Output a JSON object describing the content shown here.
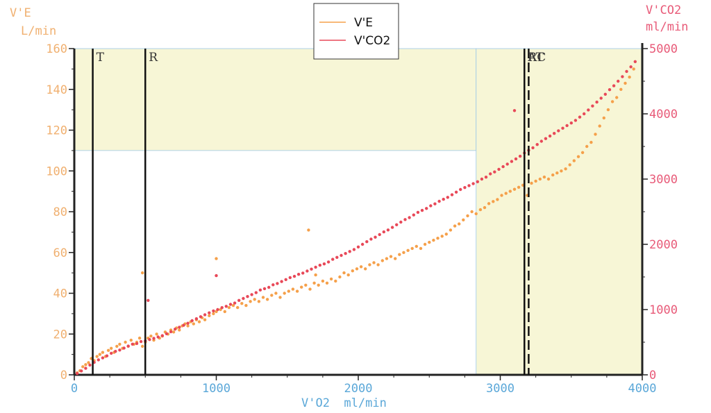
{
  "chart_data": {
    "type": "scatter",
    "xlabel": "V'O2  ml/min",
    "x_range": [
      0,
      4000
    ],
    "x_ticks": [
      0,
      1000,
      2000,
      3000,
      4000
    ],
    "left_axis": {
      "title": "V'E",
      "unit": "L/min",
      "range": [
        0,
        160
      ],
      "ticks": [
        0,
        20,
        40,
        60,
        80,
        100,
        120,
        140,
        160
      ]
    },
    "right_axis": {
      "title": "V'CO2",
      "unit": "ml/min",
      "range": [
        0,
        5000
      ],
      "ticks": [
        0,
        1000,
        2000,
        3000,
        4000,
        5000
      ]
    },
    "legend": [
      "V'E",
      "V'CO2"
    ],
    "legend_position": "top-center",
    "markers": [
      {
        "label": "T",
        "x": 130,
        "style": "solid"
      },
      {
        "label": "R",
        "x": 500,
        "style": "solid"
      },
      {
        "label": "AT",
        "x": 3170,
        "style": "solid"
      },
      {
        "label": "RC",
        "x": 3200,
        "style": "dashed"
      }
    ],
    "colors": {
      "ve": "#f5a04a",
      "vco2": "#e84858",
      "left_axis_text": "#f0b070",
      "right_axis_text": "#e85a78",
      "x_axis_text": "#5aa7d8",
      "zone_fill": "#f7f6d6",
      "zone_border": "#9cc7e8"
    },
    "zones": [
      {
        "x": [
          0,
          2830
        ],
        "y": [
          110,
          160
        ],
        "axis": "left"
      },
      {
        "x": [
          2830,
          4000
        ],
        "y": [
          0,
          160
        ],
        "axis": "left"
      }
    ],
    "series": [
      {
        "name": "V'E",
        "axis": "left",
        "points": [
          [
            20,
            1
          ],
          [
            40,
            2
          ],
          [
            60,
            4
          ],
          [
            80,
            5
          ],
          [
            100,
            6
          ],
          [
            120,
            8
          ],
          [
            140,
            7
          ],
          [
            160,
            9
          ],
          [
            180,
            10
          ],
          [
            200,
            11
          ],
          [
            220,
            9
          ],
          [
            240,
            12
          ],
          [
            260,
            13
          ],
          [
            280,
            11
          ],
          [
            300,
            14
          ],
          [
            320,
            15
          ],
          [
            340,
            13
          ],
          [
            360,
            16
          ],
          [
            380,
            14
          ],
          [
            400,
            17
          ],
          [
            420,
            15
          ],
          [
            440,
            16
          ],
          [
            460,
            18
          ],
          [
            480,
            14
          ],
          [
            500,
            16
          ],
          [
            520,
            18
          ],
          [
            540,
            19
          ],
          [
            560,
            17
          ],
          [
            580,
            20
          ],
          [
            600,
            18
          ],
          [
            620,
            19
          ],
          [
            640,
            21
          ],
          [
            660,
            20
          ],
          [
            680,
            22
          ],
          [
            700,
            21
          ],
          [
            720,
            23
          ],
          [
            740,
            22
          ],
          [
            760,
            24
          ],
          [
            780,
            25
          ],
          [
            800,
            24
          ],
          [
            820,
            26
          ],
          [
            840,
            25
          ],
          [
            860,
            27
          ],
          [
            880,
            26
          ],
          [
            900,
            28
          ],
          [
            920,
            27
          ],
          [
            950,
            29
          ],
          [
            980,
            30
          ],
          [
            1000,
            31
          ],
          [
            1030,
            32
          ],
          [
            1060,
            31
          ],
          [
            1090,
            33
          ],
          [
            1120,
            34
          ],
          [
            1150,
            33
          ],
          [
            1180,
            35
          ],
          [
            1210,
            34
          ],
          [
            1240,
            36
          ],
          [
            1270,
            37
          ],
          [
            1300,
            36
          ],
          [
            1330,
            38
          ],
          [
            1360,
            37
          ],
          [
            1390,
            39
          ],
          [
            1420,
            40
          ],
          [
            1450,
            38
          ],
          [
            1480,
            40
          ],
          [
            1510,
            41
          ],
          [
            1540,
            42
          ],
          [
            1570,
            41
          ],
          [
            1600,
            43
          ],
          [
            1630,
            44
          ],
          [
            1660,
            42
          ],
          [
            1690,
            45
          ],
          [
            1720,
            44
          ],
          [
            1750,
            46
          ],
          [
            1780,
            45
          ],
          [
            1810,
            47
          ],
          [
            1840,
            46
          ],
          [
            1870,
            48
          ],
          [
            1900,
            50
          ],
          [
            1930,
            49
          ],
          [
            1960,
            51
          ],
          [
            1990,
            52
          ],
          [
            2020,
            53
          ],
          [
            2050,
            52
          ],
          [
            2080,
            54
          ],
          [
            2110,
            55
          ],
          [
            2140,
            54
          ],
          [
            2170,
            56
          ],
          [
            2200,
            57
          ],
          [
            2230,
            58
          ],
          [
            2260,
            57
          ],
          [
            2290,
            59
          ],
          [
            2320,
            60
          ],
          [
            2350,
            61
          ],
          [
            2380,
            62
          ],
          [
            2410,
            63
          ],
          [
            2440,
            62
          ],
          [
            2470,
            64
          ],
          [
            2500,
            65
          ],
          [
            2530,
            66
          ],
          [
            2560,
            67
          ],
          [
            2590,
            68
          ],
          [
            2620,
            69
          ],
          [
            2650,
            71
          ],
          [
            2680,
            73
          ],
          [
            2710,
            74
          ],
          [
            2740,
            76
          ],
          [
            2770,
            78
          ],
          [
            2800,
            80
          ],
          [
            2830,
            79
          ],
          [
            2860,
            81
          ],
          [
            2890,
            82
          ],
          [
            2920,
            84
          ],
          [
            2950,
            85
          ],
          [
            2980,
            86
          ],
          [
            3010,
            88
          ],
          [
            3040,
            89
          ],
          [
            3070,
            90
          ],
          [
            3100,
            91
          ],
          [
            3130,
            92
          ],
          [
            3160,
            93
          ],
          [
            3190,
            88
          ],
          [
            3220,
            94
          ],
          [
            3250,
            95
          ],
          [
            3280,
            96
          ],
          [
            3310,
            97
          ],
          [
            3340,
            96
          ],
          [
            3370,
            98
          ],
          [
            3400,
            99
          ],
          [
            3430,
            100
          ],
          [
            3460,
            101
          ],
          [
            3490,
            103
          ],
          [
            3520,
            105
          ],
          [
            3550,
            107
          ],
          [
            3580,
            109
          ],
          [
            3610,
            112
          ],
          [
            3640,
            114
          ],
          [
            3670,
            118
          ],
          [
            3700,
            122
          ],
          [
            3730,
            126
          ],
          [
            3760,
            130
          ],
          [
            3790,
            134
          ],
          [
            3820,
            136
          ],
          [
            3850,
            140
          ],
          [
            3880,
            143
          ],
          [
            3910,
            146
          ],
          [
            3940,
            150
          ],
          [
            480,
            50
          ],
          [
            1000,
            57
          ],
          [
            1650,
            71
          ],
          [
            1700,
            49
          ]
        ]
      },
      {
        "name": "V'CO2",
        "axis": "right",
        "points": [
          [
            20,
            20
          ],
          [
            50,
            60
          ],
          [
            80,
            100
          ],
          [
            110,
            150
          ],
          [
            140,
            190
          ],
          [
            170,
            230
          ],
          [
            200,
            260
          ],
          [
            230,
            290
          ],
          [
            260,
            330
          ],
          [
            290,
            360
          ],
          [
            320,
            380
          ],
          [
            350,
            410
          ],
          [
            380,
            440
          ],
          [
            410,
            470
          ],
          [
            440,
            480
          ],
          [
            470,
            510
          ],
          [
            500,
            520
          ],
          [
            530,
            540
          ],
          [
            560,
            560
          ],
          [
            590,
            580
          ],
          [
            620,
            600
          ],
          [
            650,
            630
          ],
          [
            680,
            660
          ],
          [
            710,
            700
          ],
          [
            740,
            730
          ],
          [
            770,
            760
          ],
          [
            800,
            790
          ],
          [
            830,
            830
          ],
          [
            860,
            860
          ],
          [
            890,
            890
          ],
          [
            920,
            920
          ],
          [
            950,
            950
          ],
          [
            980,
            980
          ],
          [
            1010,
            1000
          ],
          [
            1040,
            1030
          ],
          [
            1070,
            1050
          ],
          [
            1100,
            1080
          ],
          [
            1130,
            1100
          ],
          [
            1160,
            1140
          ],
          [
            1190,
            1170
          ],
          [
            1220,
            1200
          ],
          [
            1250,
            1230
          ],
          [
            1280,
            1260
          ],
          [
            1310,
            1300
          ],
          [
            1340,
            1320
          ],
          [
            1370,
            1340
          ],
          [
            1400,
            1380
          ],
          [
            1430,
            1400
          ],
          [
            1460,
            1430
          ],
          [
            1490,
            1460
          ],
          [
            1520,
            1490
          ],
          [
            1550,
            1510
          ],
          [
            1580,
            1540
          ],
          [
            1610,
            1560
          ],
          [
            1640,
            1590
          ],
          [
            1670,
            1620
          ],
          [
            1700,
            1650
          ],
          [
            1730,
            1680
          ],
          [
            1760,
            1700
          ],
          [
            1790,
            1730
          ],
          [
            1820,
            1770
          ],
          [
            1850,
            1800
          ],
          [
            1880,
            1830
          ],
          [
            1910,
            1860
          ],
          [
            1940,
            1890
          ],
          [
            1970,
            1920
          ],
          [
            2000,
            1960
          ],
          [
            2030,
            2000
          ],
          [
            2060,
            2040
          ],
          [
            2090,
            2080
          ],
          [
            2120,
            2110
          ],
          [
            2150,
            2150
          ],
          [
            2180,
            2190
          ],
          [
            2210,
            2220
          ],
          [
            2240,
            2260
          ],
          [
            2270,
            2300
          ],
          [
            2300,
            2340
          ],
          [
            2330,
            2380
          ],
          [
            2360,
            2410
          ],
          [
            2390,
            2450
          ],
          [
            2420,
            2490
          ],
          [
            2450,
            2520
          ],
          [
            2480,
            2550
          ],
          [
            2510,
            2590
          ],
          [
            2540,
            2620
          ],
          [
            2570,
            2660
          ],
          [
            2600,
            2690
          ],
          [
            2630,
            2720
          ],
          [
            2660,
            2760
          ],
          [
            2690,
            2800
          ],
          [
            2720,
            2840
          ],
          [
            2750,
            2870
          ],
          [
            2780,
            2900
          ],
          [
            2810,
            2930
          ],
          [
            2840,
            2960
          ],
          [
            2870,
            3000
          ],
          [
            2900,
            3030
          ],
          [
            2930,
            3080
          ],
          [
            2960,
            3110
          ],
          [
            2990,
            3150
          ],
          [
            3020,
            3190
          ],
          [
            3050,
            3230
          ],
          [
            3080,
            3270
          ],
          [
            3110,
            3310
          ],
          [
            3140,
            3350
          ],
          [
            3170,
            3400
          ],
          [
            3200,
            3440
          ],
          [
            3230,
            3480
          ],
          [
            3260,
            3530
          ],
          [
            3290,
            3580
          ],
          [
            3320,
            3620
          ],
          [
            3350,
            3660
          ],
          [
            3380,
            3700
          ],
          [
            3410,
            3740
          ],
          [
            3440,
            3780
          ],
          [
            3470,
            3820
          ],
          [
            3500,
            3860
          ],
          [
            3530,
            3900
          ],
          [
            3560,
            3950
          ],
          [
            3590,
            4000
          ],
          [
            3620,
            4060
          ],
          [
            3650,
            4120
          ],
          [
            3680,
            4180
          ],
          [
            3710,
            4240
          ],
          [
            3740,
            4300
          ],
          [
            3770,
            4370
          ],
          [
            3800,
            4430
          ],
          [
            3830,
            4500
          ],
          [
            3860,
            4570
          ],
          [
            3890,
            4650
          ],
          [
            3920,
            4720
          ],
          [
            3950,
            4800
          ],
          [
            520,
            1140
          ],
          [
            1000,
            1520
          ],
          [
            3100,
            4050
          ]
        ]
      }
    ]
  }
}
